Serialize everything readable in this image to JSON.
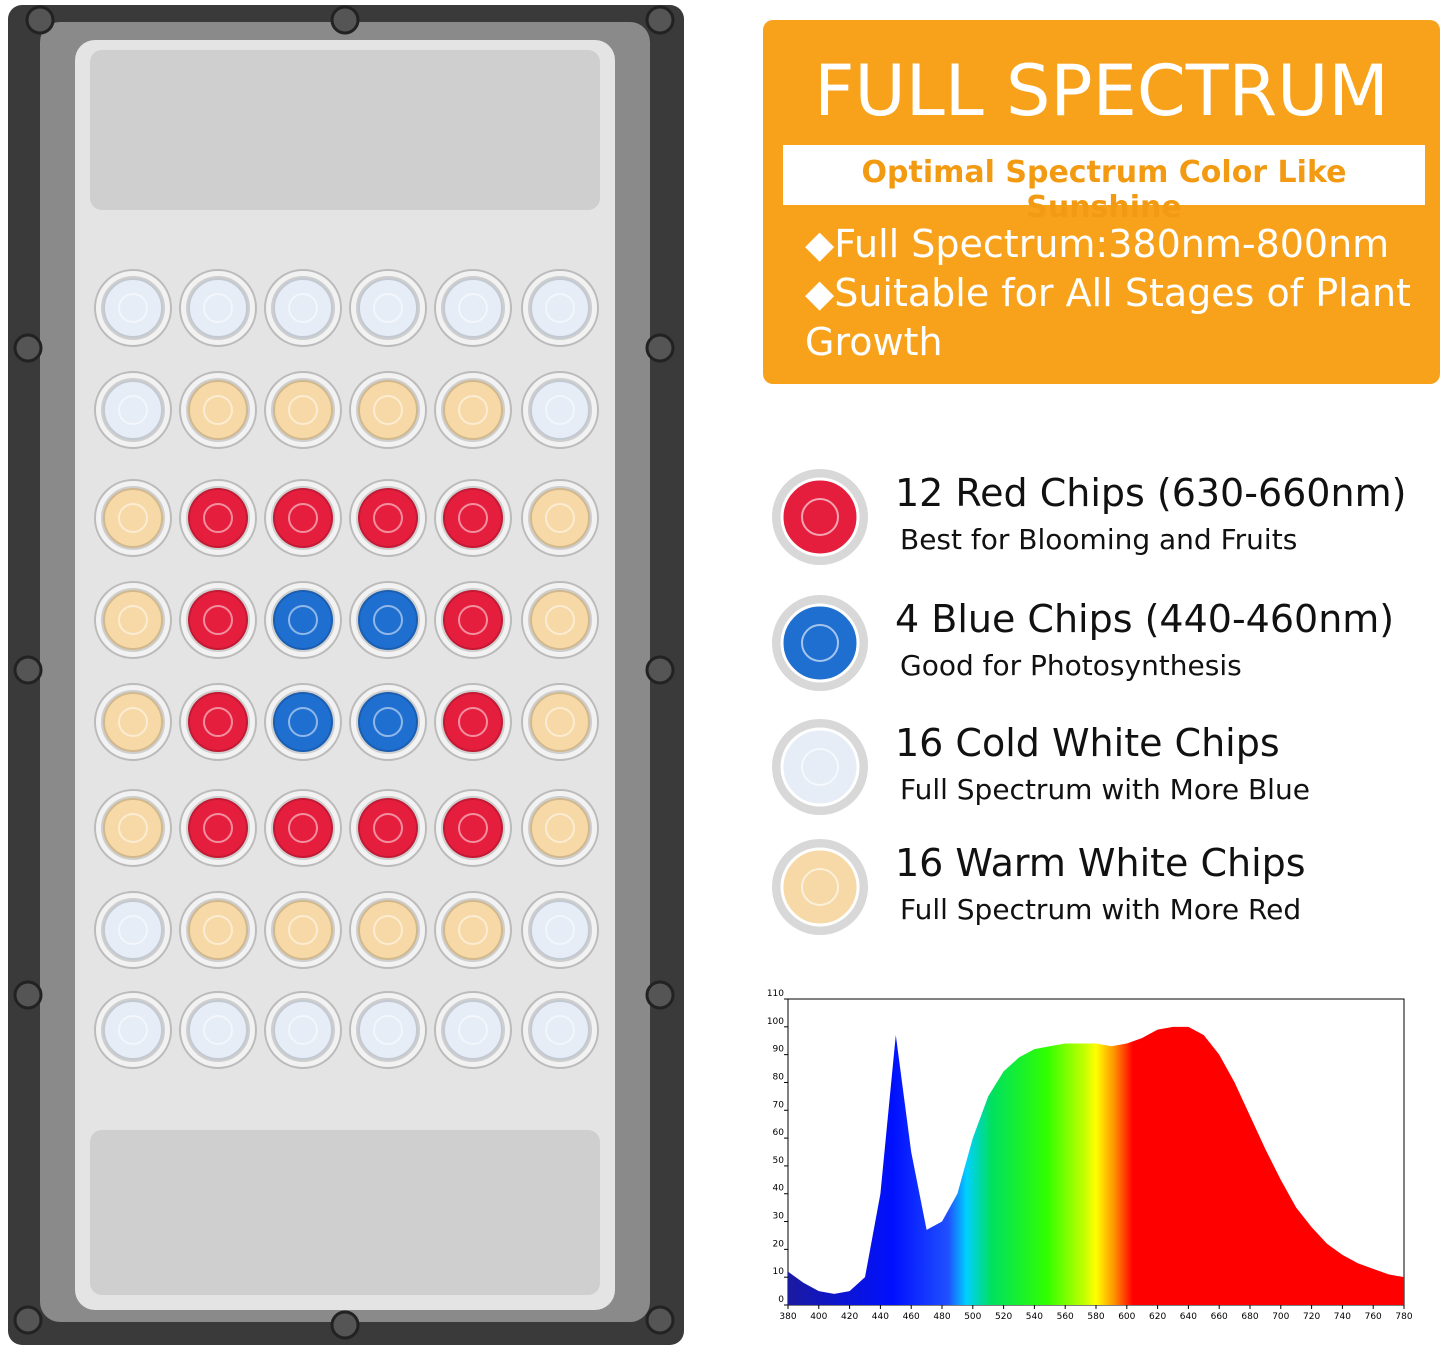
{
  "header": {
    "title": "FULL SPECTRUM",
    "subtitle": "Optimal Spectrum Color Like Sunshine",
    "bullets": [
      "◆Full Spectrum:380nm-800nm",
      "◆Suitable for All Stages of Plant Growth"
    ]
  },
  "chips": [
    {
      "name": "12 Red Chips (630-660nm)",
      "description": "Best for Blooming and Fruits",
      "color": "#e51e3e"
    },
    {
      "name": "4 Blue Chips (440-460nm)",
      "description": "Good for Photosynthesis",
      "color": "#1f6fd1"
    },
    {
      "name": "16 Cold White Chips",
      "description": "Full Spectrum with More Blue",
      "color": "#e6edf7"
    },
    {
      "name": "16 Warm White Chips",
      "description": "Full Spectrum with More Red",
      "color": "#f6d9a6"
    }
  ],
  "chart_data": {
    "type": "area",
    "x": [
      380,
      390,
      400,
      410,
      420,
      430,
      440,
      450,
      460,
      470,
      480,
      490,
      500,
      510,
      520,
      530,
      540,
      550,
      560,
      570,
      580,
      590,
      600,
      610,
      620,
      630,
      640,
      650,
      660,
      670,
      680,
      690,
      700,
      710,
      720,
      730,
      740,
      750,
      760,
      770,
      780
    ],
    "values": [
      12,
      8,
      5,
      4,
      5,
      10,
      40,
      97,
      55,
      27,
      30,
      40,
      60,
      75,
      84,
      89,
      92,
      93,
      94,
      94,
      94,
      93,
      94,
      96,
      99,
      100,
      100,
      97,
      90,
      80,
      68,
      56,
      45,
      35,
      28,
      22,
      18,
      15,
      13,
      11,
      10
    ],
    "xlim": [
      380,
      780
    ],
    "ylim": [
      0,
      110
    ],
    "xticks": [
      380,
      400,
      420,
      440,
      460,
      480,
      500,
      520,
      540,
      560,
      580,
      600,
      620,
      640,
      660,
      680,
      700,
      720,
      740,
      760,
      780
    ],
    "yticks": [
      0,
      10,
      20,
      30,
      40,
      50,
      60,
      70,
      80,
      90,
      100,
      110
    ]
  }
}
